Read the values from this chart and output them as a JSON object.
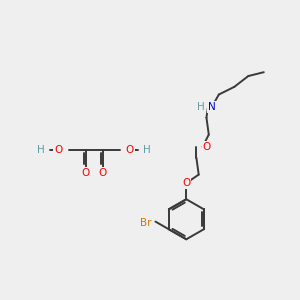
{
  "bg_color": "#efefef",
  "bond_color": "#3a3a3a",
  "atom_colors": {
    "O": "#ff0000",
    "N": "#0000cc",
    "Br": "#cc7700",
    "H": "#5f9ea0"
  },
  "lw": 1.4
}
